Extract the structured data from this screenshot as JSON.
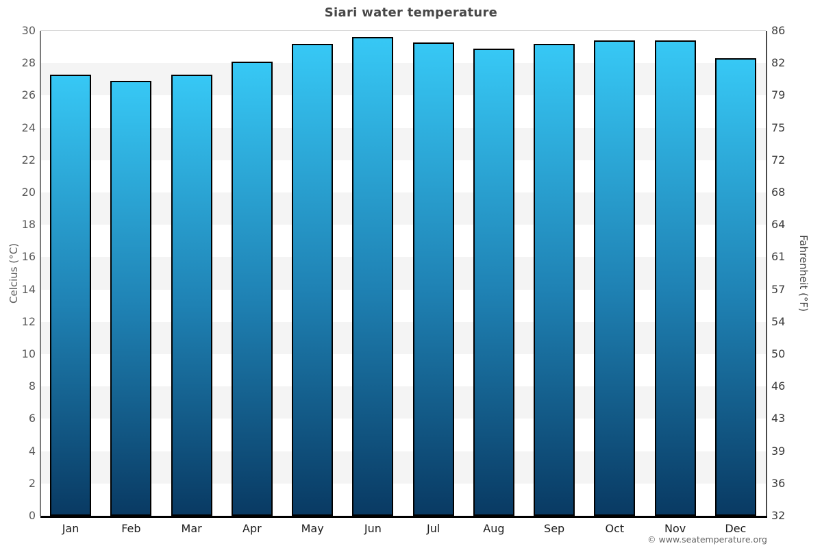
{
  "chart_data": {
    "type": "bar",
    "title": "Siari water temperature",
    "categories": [
      "Jan",
      "Feb",
      "Mar",
      "Apr",
      "May",
      "Jun",
      "Jul",
      "Aug",
      "Sep",
      "Oct",
      "Nov",
      "Dec"
    ],
    "values": [
      27.3,
      26.9,
      27.3,
      28.1,
      29.2,
      29.6,
      29.3,
      28.9,
      29.2,
      29.4,
      29.4,
      28.3
    ],
    "unit": "°C",
    "xlabel": "",
    "ylabel": "Celcius (°C)",
    "ylabel_right": "Fahrenheit (°F)",
    "ylim": [
      0,
      30
    ],
    "ytick_step": 2,
    "yticks_celsius": [
      0,
      2,
      4,
      6,
      8,
      10,
      12,
      14,
      16,
      18,
      20,
      22,
      24,
      26,
      28,
      30
    ],
    "yticks_fahrenheit": [
      32,
      36,
      39,
      43,
      46,
      50,
      54,
      57,
      61,
      64,
      68,
      72,
      75,
      79,
      82,
      86
    ],
    "legend": "none",
    "grid": "alternating horizontal bands every 2°C",
    "colors": {
      "bar_gradient_top": "#37c8f5",
      "bar_gradient_mid": "#1f82b4",
      "bar_gradient_bottom": "#093a63",
      "bar_border": "#000000",
      "band_gray": "#f4f4f4",
      "band_white": "#ffffff",
      "title_color": "#474747"
    }
  },
  "footer": {
    "text": "© www.seatemperature.org"
  }
}
